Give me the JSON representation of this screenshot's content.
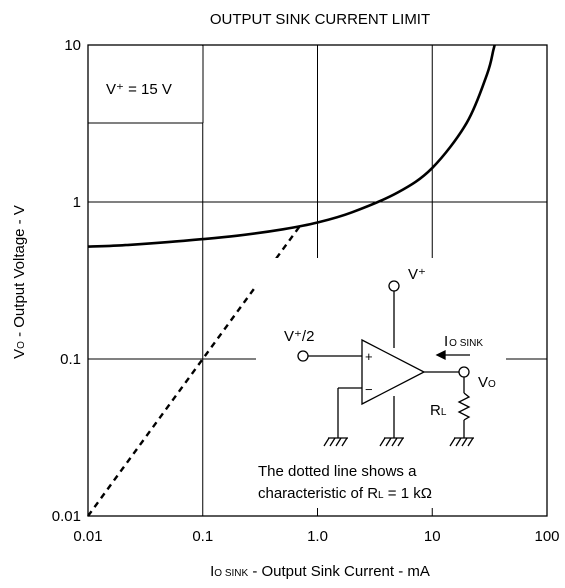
{
  "chart_data": {
    "type": "line",
    "title": "OUTPUT SINK CURRENT LIMIT",
    "xlabel": {
      "main": "I",
      "sub": "O SINK",
      "rest": " - Output Sink Current - mA"
    },
    "ylabel": {
      "main": "V",
      "sub": "O",
      "rest": " - Output Voltage - V"
    },
    "x_scale": "log",
    "y_scale": "log",
    "xlim": [
      0.01,
      100
    ],
    "ylim": [
      0.01,
      10
    ],
    "x_ticks": [
      {
        "value": 0.01,
        "label": "0.01"
      },
      {
        "value": 0.1,
        "label": "0.1"
      },
      {
        "value": 1,
        "label": "1.0"
      },
      {
        "value": 10,
        "label": "10"
      },
      {
        "value": 100,
        "label": "100"
      }
    ],
    "y_ticks": [
      {
        "value": 0.01,
        "label": "0.01"
      },
      {
        "value": 0.1,
        "label": "0.1"
      },
      {
        "value": 1,
        "label": "1"
      },
      {
        "value": 10,
        "label": "10"
      }
    ],
    "grid": true,
    "series": [
      {
        "style": "solid",
        "x": [
          0.01,
          0.02,
          0.05,
          0.1,
          0.2,
          0.5,
          1.0,
          2.0,
          5.0,
          10,
          20,
          30,
          34,
          35
        ],
        "y": [
          0.52,
          0.53,
          0.555,
          0.58,
          0.61,
          0.67,
          0.74,
          0.86,
          1.15,
          1.65,
          3.2,
          6.5,
          9.2,
          10
        ]
      },
      {
        "style": "dotted",
        "x": [
          0.01,
          0.7
        ],
        "y": [
          0.01,
          0.7
        ]
      }
    ],
    "annotations": {
      "supply_label": "V⁺ = 15 V",
      "note_line1": "The dotted line shows a",
      "note_line2": "characteristic of R",
      "note_line2_sub": "L",
      "note_line2_end": " = 1 kΩ"
    },
    "schematic": {
      "vplus": "V⁺",
      "vhalf": "V⁺/2",
      "isink": "I",
      "isink_sub": "O SINK",
      "vo": "V",
      "vo_sub": "O",
      "rl": "R",
      "rl_sub": "L",
      "plus": "+",
      "minus": "−"
    }
  }
}
